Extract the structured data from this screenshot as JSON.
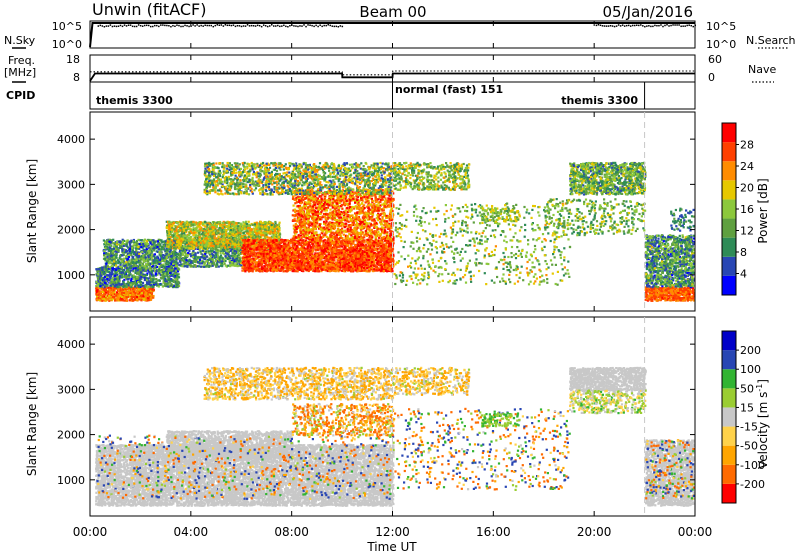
{
  "header": {
    "station": "Unwin (fitACF)",
    "beam": "Beam 00",
    "date": "05/Jan/2016"
  },
  "side_labels": {
    "nsky": "N.Sky",
    "nsearch": "N.Search",
    "freq_line1": "Freq.",
    "freq_line2": "[MHz]",
    "nave": "Nave",
    "cpid": "CPID"
  },
  "nsky_ticks": [
    "10^5",
    "10^0"
  ],
  "nsearch_ticks": [
    "10^5",
    "10^0"
  ],
  "freq_ticks": [
    "18",
    "8"
  ],
  "nave_ticks": [
    "60",
    "0"
  ],
  "cpid_segments": [
    {
      "label": "themis 3300",
      "start_h": 0,
      "end_h": 12
    },
    {
      "label": "normal (fast) 151",
      "start_h": 12,
      "end_h": 22
    },
    {
      "label": "themis 3300",
      "start_h": 22,
      "end_h": 24
    }
  ],
  "colors": {
    "power_scale": [
      "#0000ff",
      "#2846b4",
      "#2e8b57",
      "#5fa040",
      "#8cc83c",
      "#e6c800",
      "#ff8c00",
      "#ff4000",
      "#ff0000"
    ],
    "velocity_scale": [
      "#ff0000",
      "#ff6a00",
      "#ffa500",
      "#ffd24a",
      "#c8c8c8",
      "#9acd32",
      "#32b432",
      "#2846b4",
      "#0000c8"
    ],
    "frame": "#000000"
  },
  "chart_data": [
    {
      "type": "line",
      "title": "N.Sky",
      "x": [
        0,
        0.1,
        0.2,
        24
      ],
      "series": [
        {
          "name": "N.Sky",
          "values": [
            0,
            5,
            5,
            5
          ]
        }
      ],
      "ylim": [
        0,
        5
      ],
      "xlim": [
        0,
        24
      ]
    },
    {
      "type": "line",
      "title": "Freq.",
      "ylabel": "[MHz]",
      "x": [
        0,
        0.2,
        10,
        10.01,
        12,
        12.01,
        24
      ],
      "series": [
        {
          "name": "Freq.",
          "values": [
            8,
            11,
            11,
            9.5,
            9.5,
            11,
            11
          ]
        },
        {
          "name": "Nave",
          "values": [
            22,
            22,
            22,
            15,
            15,
            24,
            24
          ]
        }
      ],
      "ylim": [
        8,
        18
      ],
      "y2lim": [
        0,
        60
      ],
      "xlim": [
        0,
        24
      ]
    },
    {
      "type": "heatmap",
      "ylabel": "Slant Range [km]",
      "colorbar_label": "Power [dB]",
      "colorbar_ticks": [
        4,
        8,
        12,
        16,
        20,
        24,
        28
      ],
      "colorbar_range": [
        0,
        32
      ],
      "y_ticks": [
        1000,
        2000,
        3000,
        4000
      ],
      "ylim": [
        200,
        4600
      ],
      "xlim": [
        0,
        24
      ],
      "regions": [
        {
          "t0": 0.2,
          "t1": 2.5,
          "r0": 450,
          "r1": 750,
          "v0": 20,
          "v1": 29,
          "d": 0.9
        },
        {
          "t0": 0.2,
          "t1": 3.5,
          "r0": 750,
          "r1": 1200,
          "v0": 2,
          "v1": 16,
          "d": 0.6
        },
        {
          "t0": 0.5,
          "t1": 6.0,
          "r0": 1200,
          "r1": 1800,
          "v0": 3,
          "v1": 18,
          "d": 0.55
        },
        {
          "t0": 3.0,
          "t1": 7.5,
          "r0": 1600,
          "r1": 2200,
          "v0": 10,
          "v1": 24,
          "d": 0.7
        },
        {
          "t0": 6.0,
          "t1": 12.0,
          "r0": 1100,
          "r1": 1800,
          "v0": 22,
          "v1": 31,
          "d": 0.85
        },
        {
          "t0": 8.0,
          "t1": 12.0,
          "r0": 1800,
          "r1": 2900,
          "v0": 18,
          "v1": 31,
          "d": 0.45
        },
        {
          "t0": 4.5,
          "t1": 12.0,
          "r0": 2800,
          "r1": 3500,
          "v0": 5,
          "v1": 24,
          "d": 0.35
        },
        {
          "t0": 12.0,
          "t1": 15.0,
          "r0": 2900,
          "r1": 3500,
          "v0": 8,
          "v1": 22,
          "d": 0.3
        },
        {
          "t0": 12.0,
          "t1": 19.0,
          "r0": 800,
          "r1": 2600,
          "v0": 8,
          "v1": 22,
          "d": 0.06
        },
        {
          "t0": 15.5,
          "t1": 17.0,
          "r0": 2200,
          "r1": 2500,
          "v0": 10,
          "v1": 20,
          "d": 0.3
        },
        {
          "t0": 19.0,
          "t1": 22.0,
          "r0": 2800,
          "r1": 3500,
          "v0": 6,
          "v1": 20,
          "d": 0.55
        },
        {
          "t0": 18.0,
          "t1": 22.0,
          "r0": 1900,
          "r1": 2700,
          "v0": 8,
          "v1": 20,
          "d": 0.12
        },
        {
          "t0": 22.0,
          "t1": 24.0,
          "r0": 450,
          "r1": 750,
          "v0": 22,
          "v1": 29,
          "d": 0.9
        },
        {
          "t0": 22.0,
          "t1": 24.0,
          "r0": 750,
          "r1": 1900,
          "v0": 3,
          "v1": 18,
          "d": 0.55
        },
        {
          "t0": 23.0,
          "t1": 24.0,
          "r0": 2000,
          "r1": 2500,
          "v0": 4,
          "v1": 12,
          "d": 0.15
        }
      ]
    },
    {
      "type": "heatmap",
      "xlabel": "Time UT",
      "ylabel": "Slant Range [km]",
      "colorbar_label": "Velocity [m s^-1]",
      "colorbar_ticks": [
        200,
        100,
        50,
        15,
        -15,
        -50,
        -100,
        -200
      ],
      "x_ticks": [
        "00:00",
        "04:00",
        "08:00",
        "12:00",
        "16:00",
        "20:00",
        "00:00"
      ],
      "y_ticks": [
        1000,
        2000,
        3000,
        4000
      ],
      "ylim": [
        200,
        4600
      ],
      "xlim": [
        0,
        24
      ],
      "regions": [
        {
          "t0": 0.2,
          "t1": 12.0,
          "r0": 450,
          "r1": 1800,
          "v0": -10,
          "v1": 10,
          "d": 0.65
        },
        {
          "t0": 3.0,
          "t1": 8.0,
          "r0": 1500,
          "r1": 2100,
          "v0": -12,
          "v1": 12,
          "d": 0.6
        },
        {
          "t0": 0.2,
          "t1": 12.0,
          "r0": 600,
          "r1": 2000,
          "v0": -200,
          "v1": 200,
          "d": 0.05
        },
        {
          "t0": 8.0,
          "t1": 12.0,
          "r0": 2000,
          "r1": 2700,
          "v0": -200,
          "v1": 50,
          "d": 0.25
        },
        {
          "t0": 4.5,
          "t1": 12.0,
          "r0": 2800,
          "r1": 3500,
          "v0": -100,
          "v1": 20,
          "d": 0.3
        },
        {
          "t0": 12.0,
          "t1": 15.0,
          "r0": 2900,
          "r1": 3500,
          "v0": -100,
          "v1": 30,
          "d": 0.25
        },
        {
          "t0": 12.0,
          "t1": 19.0,
          "r0": 800,
          "r1": 2600,
          "v0": -200,
          "v1": 200,
          "d": 0.05
        },
        {
          "t0": 15.5,
          "t1": 17.0,
          "r0": 2200,
          "r1": 2500,
          "v0": 20,
          "v1": 80,
          "d": 0.3
        },
        {
          "t0": 19.0,
          "t1": 22.0,
          "r0": 3000,
          "r1": 3500,
          "v0": -12,
          "v1": 12,
          "d": 0.7
        },
        {
          "t0": 19.0,
          "t1": 22.0,
          "r0": 2500,
          "r1": 3000,
          "v0": -50,
          "v1": 60,
          "d": 0.3
        },
        {
          "t0": 22.0,
          "t1": 24.0,
          "r0": 450,
          "r1": 1900,
          "v0": -12,
          "v1": 12,
          "d": 0.6
        },
        {
          "t0": 22.0,
          "t1": 24.0,
          "r0": 600,
          "r1": 1900,
          "v0": -200,
          "v1": 200,
          "d": 0.1
        }
      ]
    }
  ]
}
